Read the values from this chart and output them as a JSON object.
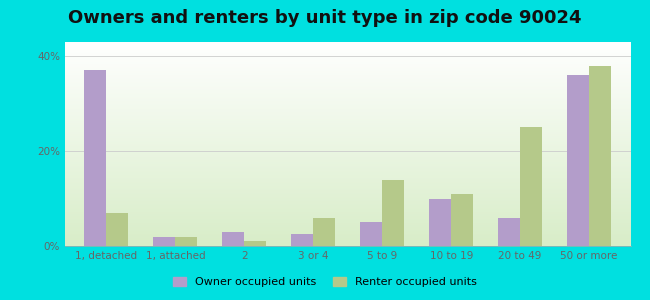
{
  "title": "Owners and renters by unit type in zip code 90024",
  "categories": [
    "1, detached",
    "1, attached",
    "2",
    "3 or 4",
    "5 to 9",
    "10 to 19",
    "20 to 49",
    "50 or more"
  ],
  "owner_values": [
    37,
    2,
    3,
    2.5,
    5,
    10,
    6,
    36
  ],
  "renter_values": [
    7,
    2,
    1,
    6,
    14,
    11,
    25,
    38
  ],
  "owner_color": "#b39dca",
  "renter_color": "#b5c98a",
  "owner_label": "Owner occupied units",
  "renter_label": "Renter occupied units",
  "background_color": "#00e0e0",
  "plot_bg_color": "#eef5e8",
  "title_fontsize": 13,
  "ytick_labels": [
    "0%",
    "20%",
    "40%"
  ],
  "ytick_values": [
    0,
    20,
    40
  ],
  "ylim": [
    0,
    43
  ],
  "bar_width": 0.32,
  "grid_color": "#cccccc",
  "tick_color": "#666666",
  "tick_fontsize": 7.5
}
